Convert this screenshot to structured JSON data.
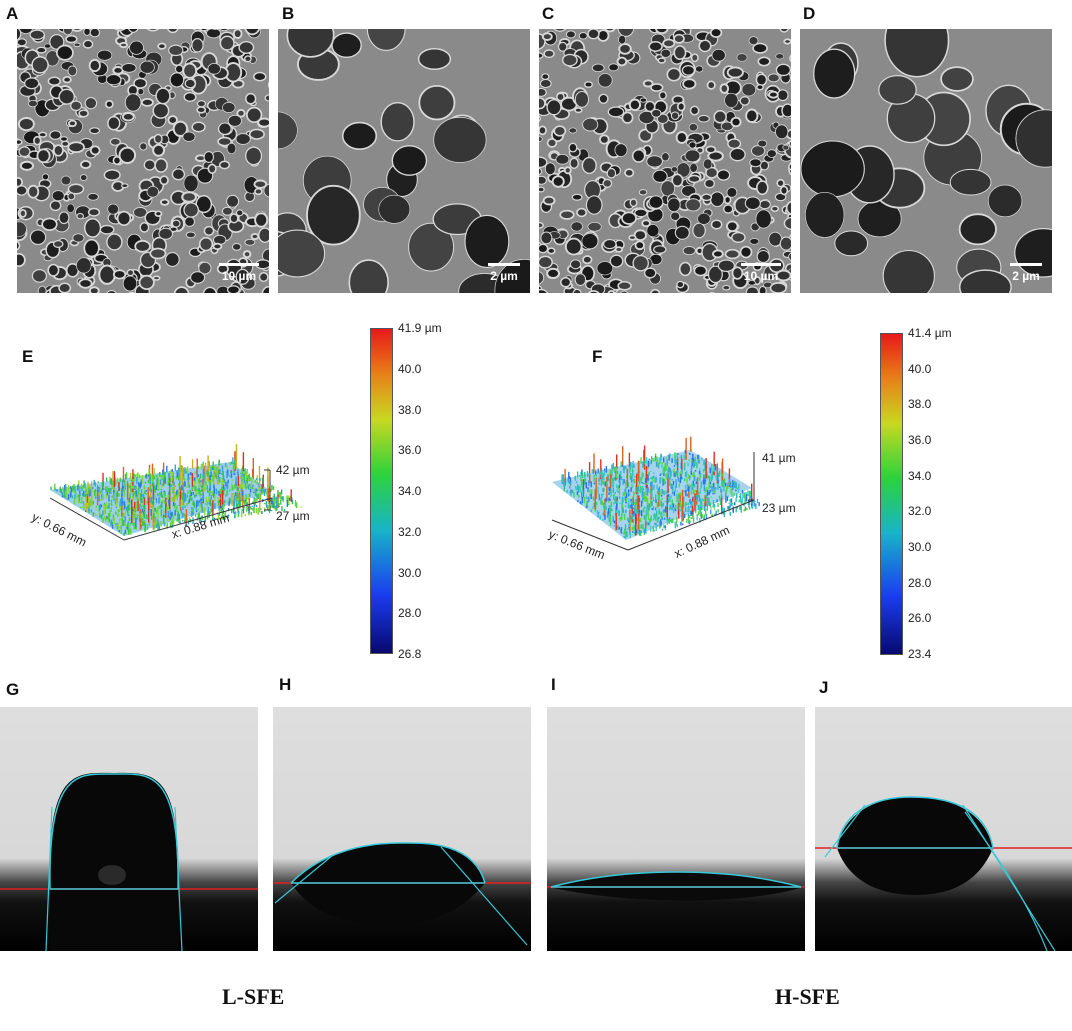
{
  "panels": {
    "A": {
      "label": "A",
      "scale": "10 µm"
    },
    "B": {
      "label": "B",
      "scale": "2 µm"
    },
    "C": {
      "label": "C",
      "scale": "10 µm"
    },
    "D": {
      "label": "D",
      "scale": "2 µm"
    },
    "E": {
      "label": "E",
      "y_axis": "y: 0.66 mm",
      "x_axis": "x: 0.88 mm",
      "z_top": "42 µm",
      "z_bottom": "27 µm",
      "colorbar": [
        "41.9 µm",
        "40.0",
        "38.0",
        "36.0",
        "34.0",
        "32.0",
        "30.0",
        "28.0",
        "26.8"
      ]
    },
    "F": {
      "label": "F",
      "y_axis": "y: 0.66 mm",
      "x_axis": "x: 0.88 mm",
      "z_top": "41 µm",
      "z_bottom": "23 µm",
      "colorbar": [
        "41.4 µm",
        "40.0",
        "38.0",
        "36.0",
        "34.0",
        "32.0",
        "30.0",
        "28.0",
        "26.0",
        "23.4"
      ]
    },
    "G": {
      "label": "G"
    },
    "H": {
      "label": "H"
    },
    "I": {
      "label": "I"
    },
    "J": {
      "label": "J"
    }
  },
  "group_labels": {
    "left": "L-SFE",
    "right": "H-SFE"
  },
  "colors": {
    "baseline": "#e02020",
    "fit": "#38c8d8",
    "colorbar_stops": [
      "#08086e",
      "#1a3cf0",
      "#18b4c8",
      "#2cd23c",
      "#c8d820",
      "#e88018",
      "#e81818"
    ]
  }
}
